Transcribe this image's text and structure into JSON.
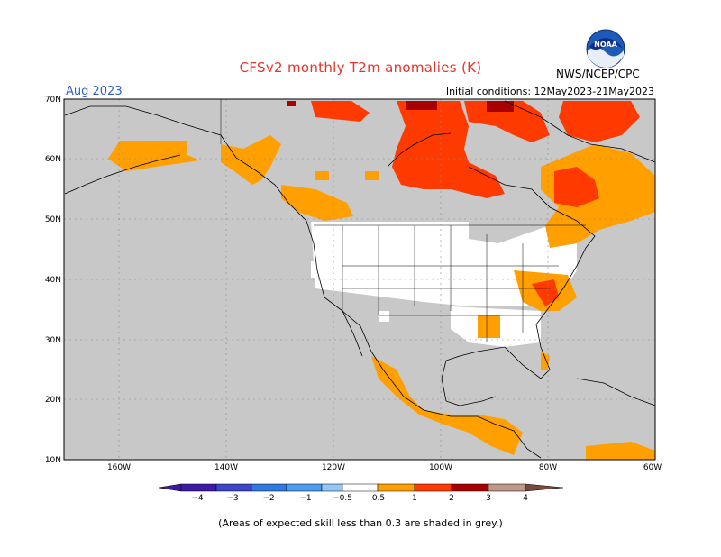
{
  "header": {
    "title": "CFSv2 monthly T2m anomalies (K)",
    "month": "Aug 2023",
    "initial_conditions": "Initial conditions: 12May2023-21May2023",
    "agency": "NWS/NCEP/CPC",
    "logo_text": "NOAA"
  },
  "map": {
    "lat_labels": [
      "70N",
      "60N",
      "50N",
      "40N",
      "30N",
      "20N",
      "10N"
    ],
    "lon_labels": [
      "160W",
      "140W",
      "120W",
      "100W",
      "80W",
      "60W"
    ],
    "colors": {
      "ocean_land_low_skill": "#c8c8c8",
      "no_anomaly": "#ffffff",
      "anom_0_5_to_1": "#ff9f00",
      "anom_1_to_2": "#ff3a00",
      "anom_2_to_3": "#a80000"
    }
  },
  "legend": {
    "labels": [
      "−4",
      "−3",
      "−2",
      "−1",
      "−0.5",
      "0.5",
      "1",
      "2",
      "3",
      "4"
    ],
    "colors": [
      "#3a1aa6",
      "#3c46c8",
      "#2f79e1",
      "#4a9df0",
      "#92c8f8",
      "#ffffff",
      "#ff9f00",
      "#ff3a00",
      "#a80000",
      "#c0988a",
      "#7a4a40"
    ]
  },
  "footnote": "(Areas of expected skill less than 0.3 are shaded in grey.)"
}
